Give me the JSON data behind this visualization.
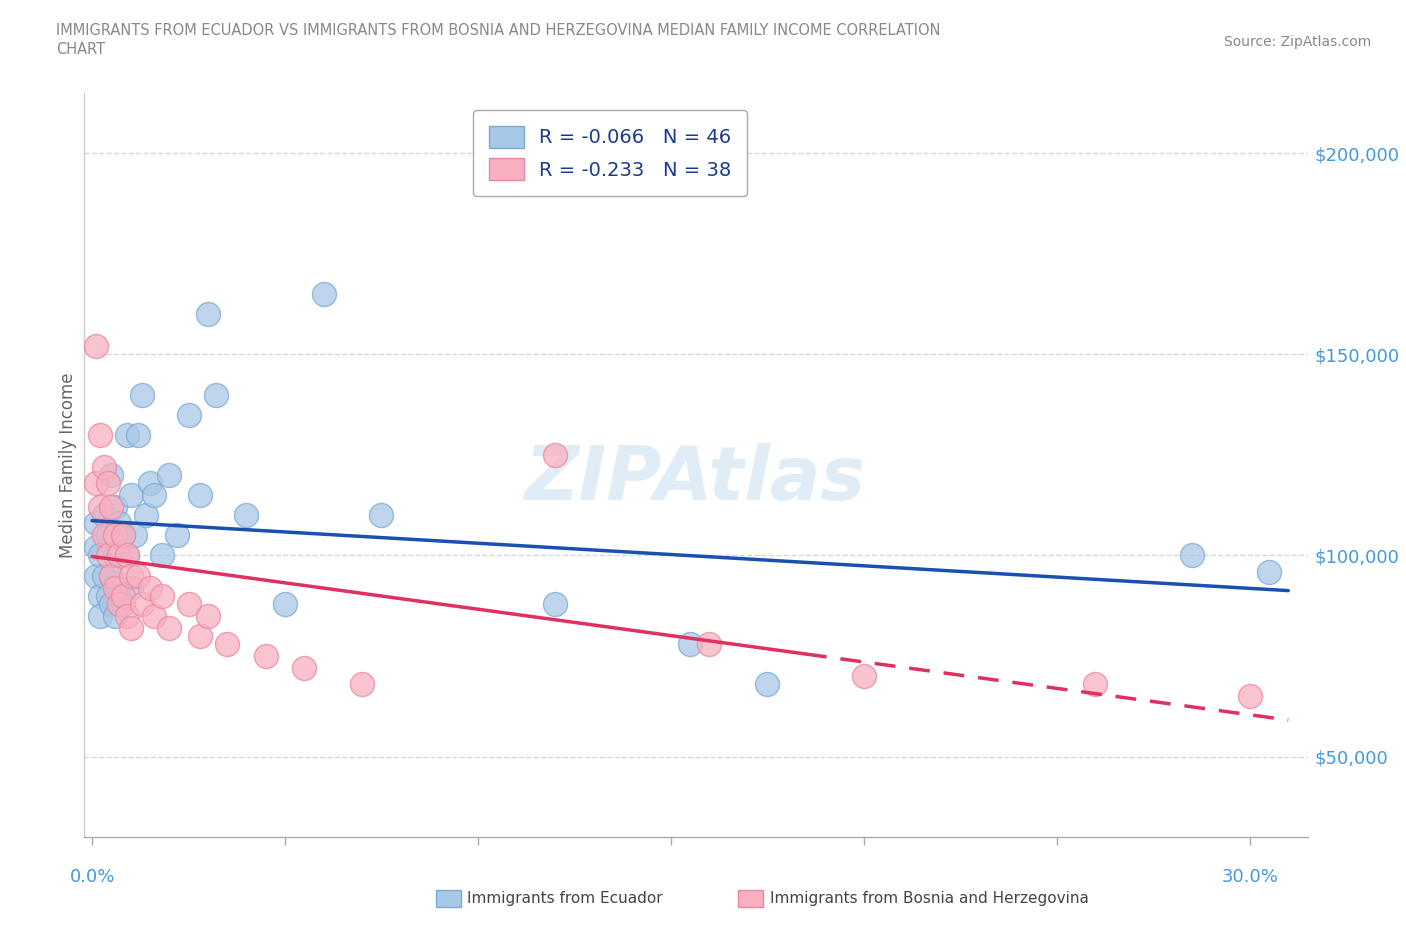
{
  "title_line1": "IMMIGRANTS FROM ECUADOR VS IMMIGRANTS FROM BOSNIA AND HERZEGOVINA MEDIAN FAMILY INCOME CORRELATION",
  "title_line2": "CHART",
  "source": "Source: ZipAtlas.com",
  "watermark": "ZIPAtlas",
  "ylabel": "Median Family Income",
  "ytick_labels": [
    "$50,000",
    "$100,000",
    "$150,000",
    "$200,000"
  ],
  "ytick_values": [
    50000,
    100000,
    150000,
    200000
  ],
  "ylim": [
    30000,
    215000
  ],
  "xlim": [
    -0.002,
    0.315
  ],
  "r_ecuador": -0.066,
  "n_ecuador": 46,
  "r_bosnia": -0.233,
  "n_bosnia": 38,
  "ecuador_color": "#a8c8e8",
  "bosnia_color": "#f8b0c0",
  "ecuador_edge_color": "#7aaad0",
  "bosnia_edge_color": "#e888a0",
  "ecuador_line_color": "#1a50b0",
  "bosnia_line_color": "#e03060",
  "tick_color": "#4499dd",
  "background_color": "#ffffff",
  "grid_color": "#cccccc",
  "title_color": "#888888",
  "ecuador_x": [
    0.001,
    0.001,
    0.001,
    0.002,
    0.002,
    0.002,
    0.003,
    0.003,
    0.004,
    0.004,
    0.005,
    0.005,
    0.005,
    0.006,
    0.006,
    0.006,
    0.007,
    0.007,
    0.008,
    0.008,
    0.009,
    0.009,
    0.01,
    0.01,
    0.011,
    0.012,
    0.013,
    0.014,
    0.015,
    0.016,
    0.018,
    0.02,
    0.022,
    0.025,
    0.028,
    0.03,
    0.032,
    0.04,
    0.05,
    0.06,
    0.075,
    0.12,
    0.155,
    0.175,
    0.285,
    0.305
  ],
  "ecuador_y": [
    108000,
    102000,
    95000,
    100000,
    90000,
    85000,
    110000,
    95000,
    105000,
    90000,
    120000,
    95000,
    88000,
    112000,
    100000,
    85000,
    108000,
    92000,
    105000,
    88000,
    130000,
    100000,
    115000,
    92000,
    105000,
    130000,
    140000,
    110000,
    118000,
    115000,
    100000,
    120000,
    105000,
    135000,
    115000,
    160000,
    140000,
    110000,
    88000,
    165000,
    110000,
    88000,
    78000,
    68000,
    100000,
    96000
  ],
  "bosnia_x": [
    0.001,
    0.001,
    0.002,
    0.002,
    0.003,
    0.003,
    0.004,
    0.004,
    0.005,
    0.005,
    0.006,
    0.006,
    0.007,
    0.007,
    0.008,
    0.008,
    0.009,
    0.009,
    0.01,
    0.01,
    0.012,
    0.013,
    0.015,
    0.016,
    0.018,
    0.02,
    0.025,
    0.028,
    0.03,
    0.035,
    0.045,
    0.055,
    0.07,
    0.12,
    0.16,
    0.2,
    0.26,
    0.3
  ],
  "bosnia_y": [
    152000,
    118000,
    130000,
    112000,
    122000,
    105000,
    118000,
    100000,
    112000,
    95000,
    105000,
    92000,
    100000,
    88000,
    105000,
    90000,
    100000,
    85000,
    95000,
    82000,
    95000,
    88000,
    92000,
    85000,
    90000,
    82000,
    88000,
    80000,
    85000,
    78000,
    75000,
    72000,
    68000,
    125000,
    78000,
    70000,
    68000,
    65000
  ]
}
